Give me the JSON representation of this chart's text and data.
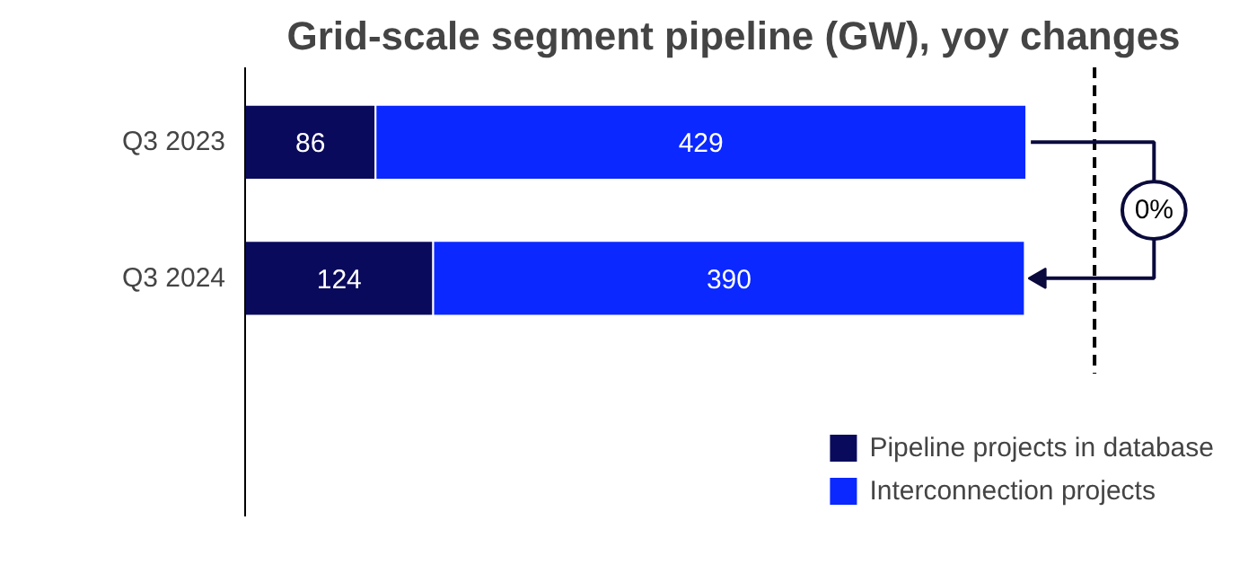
{
  "chart_data": {
    "type": "bar",
    "orientation": "horizontal",
    "stacked": true,
    "title": "Grid-scale segment pipeline (GW), yoy changes",
    "categories": [
      "Q3 2023",
      "Q3 2024"
    ],
    "series": [
      {
        "name": "Pipeline projects in database",
        "color": "#0a0a5c",
        "values": [
          86,
          124
        ]
      },
      {
        "name": "Interconnection projects",
        "color": "#0a28ff",
        "values": [
          429,
          390
        ]
      }
    ],
    "data_labels": true,
    "ref_lines": [
      {
        "axis": "x",
        "value": 560,
        "color": "#000000",
        "line_style": "dashed"
      }
    ],
    "annotations": [
      "0%"
    ],
    "legend": "bottom right",
    "grid": false
  }
}
